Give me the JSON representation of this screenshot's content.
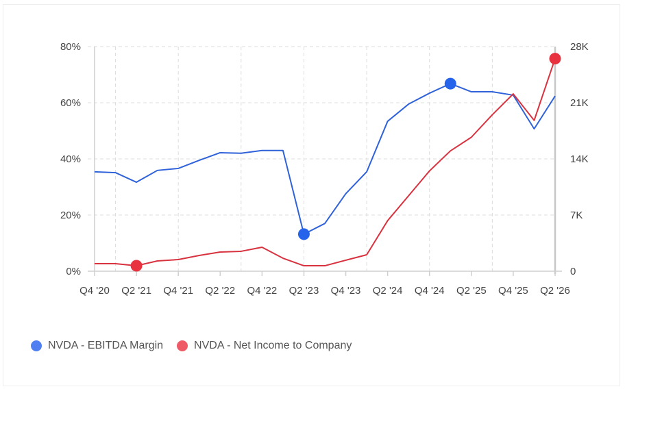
{
  "chart_data": {
    "type": "line",
    "title": "",
    "x": [
      "Q4 '20",
      "Q1 '21",
      "Q2 '21",
      "Q3 '21",
      "Q4 '21",
      "Q1 '22",
      "Q2 '22",
      "Q3 '22",
      "Q4 '22",
      "Q1 '23",
      "Q2 '23",
      "Q3 '23",
      "Q4 '23",
      "Q1 '24",
      "Q2 '24",
      "Q3 '24",
      "Q4 '24",
      "Q1 '25",
      "Q2 '25",
      "Q3 '25",
      "Q4 '25",
      "Q1 '26",
      "Q2 '26"
    ],
    "x_tick_labels": [
      "Q4 '20",
      "Q2 '21",
      "Q4 '21",
      "Q2 '22",
      "Q4 '22",
      "Q2 '23",
      "Q4 '23",
      "Q2 '24",
      "Q4 '24",
      "Q2 '25",
      "Q4 '25",
      "Q2 '26"
    ],
    "y_left": {
      "ylim": [
        0,
        80
      ],
      "tick_labels": [
        "0%",
        "20%",
        "40%",
        "60%",
        "80%"
      ],
      "ticks": [
        0,
        20,
        40,
        60,
        80
      ]
    },
    "y_right": {
      "ylim": [
        0,
        28000
      ],
      "tick_labels": [
        "0",
        "7K",
        "14K",
        "21K",
        "28K"
      ],
      "ticks": [
        0,
        7000,
        14000,
        21000,
        28000
      ]
    },
    "grid": true,
    "legend_placement": "bottom-left",
    "series": [
      {
        "name": "NVDA - EBITDA Margin",
        "axis": "left",
        "color": "#2f62d9",
        "legend_color": "#4f7ff0",
        "values": [
          35.4,
          35.1,
          31.7,
          35.9,
          36.6,
          39.5,
          42.2,
          42.0,
          43.0,
          43.0,
          13.2,
          17.0,
          27.6,
          35.4,
          53.4,
          59.5,
          63.4,
          66.8,
          63.9,
          63.9,
          62.7,
          50.7,
          62.4
        ],
        "highlight_indices": [
          10,
          17
        ]
      },
      {
        "name": "NVDA - Net Income to Company",
        "axis": "right",
        "color": "#d8323f",
        "legend_color": "#ee5a66",
        "values": [
          940,
          940,
          680,
          1280,
          1450,
          1960,
          2390,
          2480,
          2990,
          1620,
          680,
          680,
          1370,
          2050,
          6300,
          9400,
          12500,
          15000,
          16700,
          19500,
          22100,
          18800,
          26500
        ],
        "highlight_indices": [
          2,
          22
        ]
      }
    ]
  }
}
